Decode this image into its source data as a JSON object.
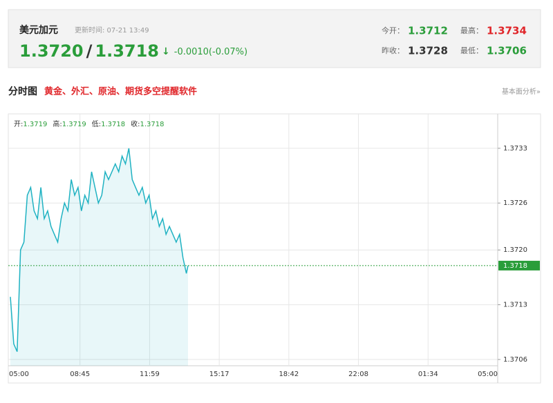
{
  "header": {
    "name": "美元加元",
    "update_time": "更新时间: 07-21 13:49",
    "bid": "1.3720",
    "separator": "/",
    "ask": "1.3718",
    "arrow": "↓",
    "change": "-0.0010(-0.07%)"
  },
  "stats": [
    {
      "label": "今开：",
      "value": "1.3712"
    },
    {
      "label": "最高：",
      "value": "1.3734"
    },
    {
      "label": "昨收：",
      "value": "1.3728"
    },
    {
      "label": "最低：",
      "value": "1.3706"
    }
  ],
  "section": {
    "title": "分时图",
    "promo": "黄金、外汇、原油、期货多空提醒软件",
    "link": "基本面分析»"
  },
  "chart_data": {
    "type": "line",
    "info": [
      {
        "label": "开:",
        "value": "1.3719"
      },
      {
        "label": "高:",
        "value": "1.3719"
      },
      {
        "label": "低:",
        "value": "1.3718"
      },
      {
        "label": "收:",
        "value": "1.3718"
      }
    ],
    "x": [
      "05:00",
      "05:10",
      "05:20",
      "05:30",
      "05:40",
      "05:50",
      "06:00",
      "06:10",
      "06:20",
      "06:30",
      "06:40",
      "06:50",
      "07:00",
      "07:10",
      "07:20",
      "07:30",
      "07:40",
      "07:50",
      "08:00",
      "08:10",
      "08:20",
      "08:30",
      "08:40",
      "08:50",
      "09:00",
      "09:10",
      "09:20",
      "09:30",
      "09:40",
      "09:50",
      "10:00",
      "10:10",
      "10:20",
      "10:30",
      "10:40",
      "10:50",
      "11:00",
      "11:10",
      "11:20",
      "11:30",
      "11:40",
      "11:50",
      "12:00",
      "12:10",
      "12:20",
      "12:30",
      "12:40",
      "12:50",
      "13:00",
      "13:10",
      "13:20",
      "13:30",
      "13:40",
      "13:45"
    ],
    "series": [
      {
        "color": "#1fb2c2",
        "values": [
          1.3714,
          1.3708,
          1.3707,
          1.372,
          1.3721,
          1.3727,
          1.3728,
          1.3725,
          1.3724,
          1.3728,
          1.3724,
          1.3725,
          1.3723,
          1.3722,
          1.3721,
          1.3724,
          1.3726,
          1.3725,
          1.3729,
          1.3727,
          1.3728,
          1.3725,
          1.3727,
          1.3726,
          1.373,
          1.3728,
          1.3726,
          1.3727,
          1.373,
          1.3729,
          1.373,
          1.3731,
          1.373,
          1.3732,
          1.3731,
          1.3733,
          1.3729,
          1.3728,
          1.3727,
          1.3728,
          1.3726,
          1.3727,
          1.3724,
          1.3725,
          1.3723,
          1.3724,
          1.3722,
          1.3723,
          1.3722,
          1.3721,
          1.3722,
          1.3719,
          1.3717,
          1.3718
        ]
      }
    ],
    "current_value": 1.3718,
    "current_color": "#2a9d3a",
    "xticks": [
      "05:00",
      "08:45",
      "11:59",
      "15:17",
      "18:42",
      "22:08",
      "01:34",
      "05:00"
    ],
    "ylim": [
      1.37052,
      1.37374
    ],
    "yticks": [
      1.3733,
      1.3726,
      {
        "value": 1.372,
        "label": "1.3720"
      },
      1.3713,
      1.3706
    ],
    "grid": true
  }
}
